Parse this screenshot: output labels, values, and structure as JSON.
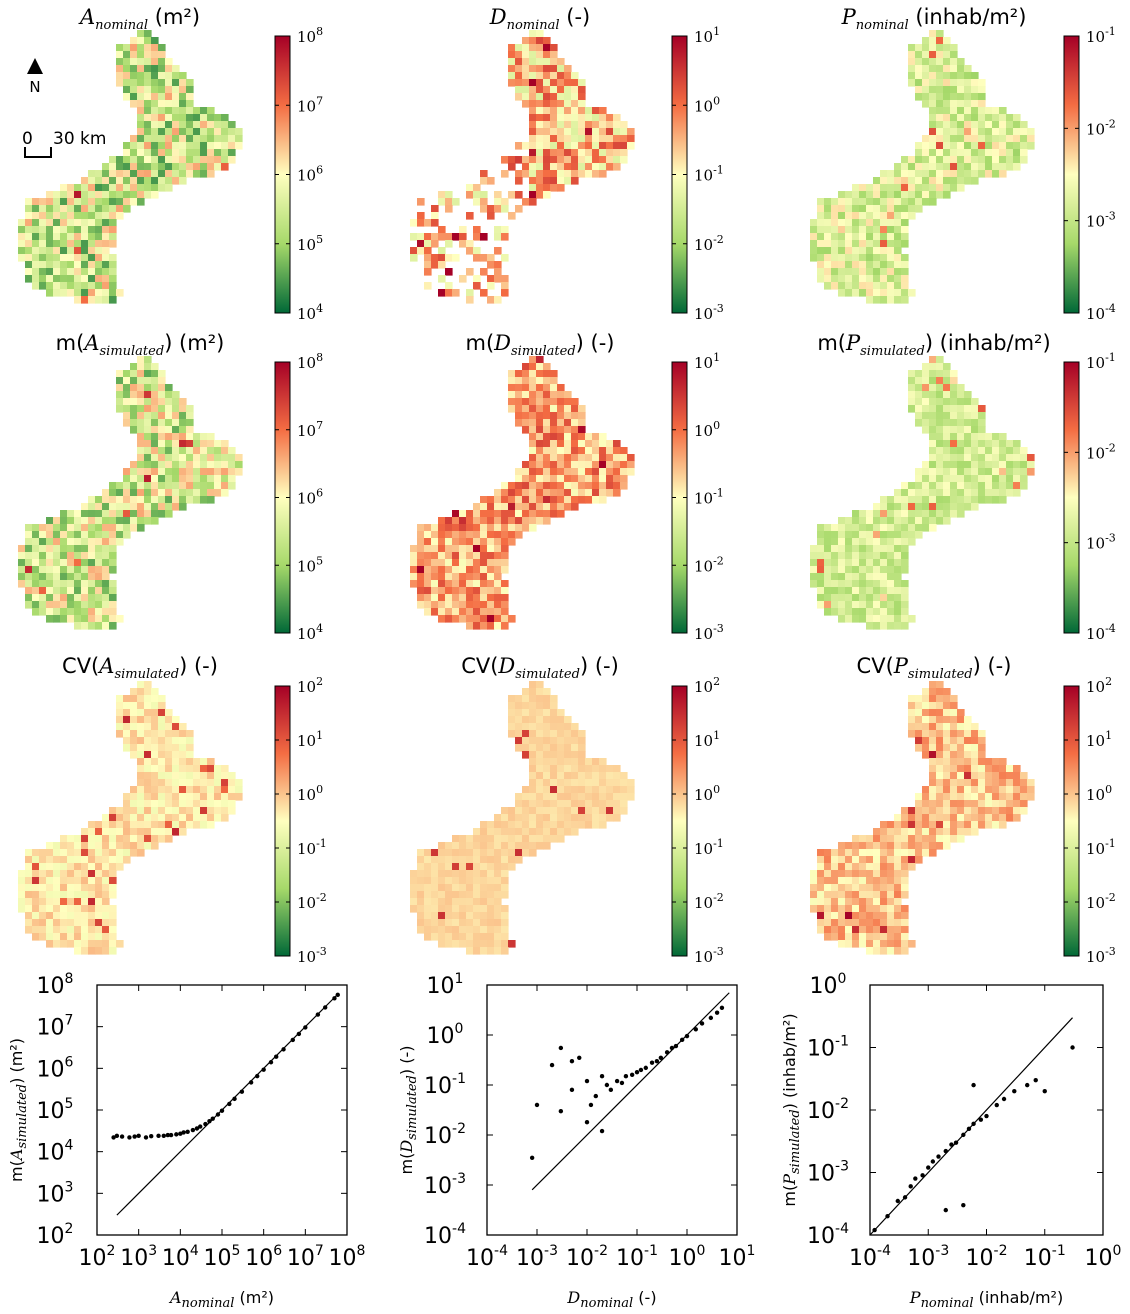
{
  "north_arrow": {
    "label": "N"
  },
  "scale_bar": {
    "zero": "0",
    "distance": "30 km"
  },
  "colormap": {
    "high": "#a50026",
    "mid_high": "#f46d43",
    "mid": "#ffffbf",
    "mid_low": "#a6d96a",
    "low": "#006837"
  },
  "maps": [
    {
      "key": "A_nominal",
      "title": {
        "pre": "",
        "sym": "A",
        "sub": "nominal",
        "post": " (m²)"
      },
      "colorbar": {
        "min_exp": 4,
        "max_exp": 8,
        "ticks": [
          "10^4",
          "10^5",
          "10^6",
          "10^7",
          "10^8"
        ]
      },
      "mean": 0.38,
      "spread": 0.28,
      "seed": 1,
      "mask": "full"
    },
    {
      "key": "D_nominal",
      "title": {
        "pre": "",
        "sym": "D",
        "sub": "nominal",
        "post": " (-)"
      },
      "colorbar": {
        "min_exp": -3,
        "max_exp": 1,
        "ticks": [
          "10^-3",
          "10^-2",
          "10^-1",
          "10^0",
          "10^1"
        ]
      },
      "mean": 0.62,
      "spread": 0.22,
      "seed": 2,
      "mask": "sparse"
    },
    {
      "key": "P_nominal",
      "title": {
        "pre": "",
        "sym": "P",
        "sub": "nominal",
        "post": " (inhab/m²)"
      },
      "colorbar": {
        "min_exp": -4,
        "max_exp": -1,
        "ticks": [
          "10^-4",
          "10^-3",
          "10^-2",
          "10^-1"
        ]
      },
      "mean": 0.4,
      "spread": 0.16,
      "seed": 3,
      "mask": "full"
    },
    {
      "key": "A_sim_mean",
      "title": {
        "pre": "m(",
        "sym": "A",
        "sub": "simulated",
        "post": ") (m²)"
      },
      "colorbar": {
        "min_exp": 4,
        "max_exp": 8,
        "ticks": [
          "10^4",
          "10^5",
          "10^6",
          "10^7",
          "10^8"
        ]
      },
      "mean": 0.4,
      "spread": 0.26,
      "seed": 4,
      "mask": "full"
    },
    {
      "key": "D_sim_mean",
      "title": {
        "pre": "m(",
        "sym": "D",
        "sub": "simulated",
        "post": ") (-)"
      },
      "colorbar": {
        "min_exp": -3,
        "max_exp": 1,
        "ticks": [
          "10^-3",
          "10^-2",
          "10^-1",
          "10^0",
          "10^1"
        ]
      },
      "mean": 0.66,
      "spread": 0.18,
      "seed": 5,
      "mask": "full"
    },
    {
      "key": "P_sim_mean",
      "title": {
        "pre": "m(",
        "sym": "P",
        "sub": "simulated",
        "post": ") (inhab/m²)"
      },
      "colorbar": {
        "min_exp": -4,
        "max_exp": -1,
        "ticks": [
          "10^-4",
          "10^-3",
          "10^-2",
          "10^-1"
        ]
      },
      "mean": 0.38,
      "spread": 0.12,
      "seed": 6,
      "mask": "full"
    },
    {
      "key": "A_sim_cv",
      "title": {
        "pre": "CV(",
        "sym": "A",
        "sub": "simulated",
        "post": ") (-)"
      },
      "colorbar": {
        "min_exp": -3,
        "max_exp": 2,
        "ticks": [
          "10^-3",
          "10^-2",
          "10^-1",
          "10^0",
          "10^1",
          "10^2"
        ]
      },
      "mean": 0.54,
      "spread": 0.08,
      "seed": 7,
      "mask": "full"
    },
    {
      "key": "D_sim_cv",
      "title": {
        "pre": "CV(",
        "sym": "D",
        "sub": "simulated",
        "post": ") (-)"
      },
      "colorbar": {
        "min_exp": -3,
        "max_exp": 2,
        "ticks": [
          "10^-3",
          "10^-2",
          "10^-1",
          "10^0",
          "10^1",
          "10^2"
        ]
      },
      "mean": 0.57,
      "spread": 0.03,
      "seed": 8,
      "mask": "full"
    },
    {
      "key": "P_sim_cv",
      "title": {
        "pre": "CV(",
        "sym": "P",
        "sub": "simulated",
        "post": ") (-)"
      },
      "colorbar": {
        "min_exp": -3,
        "max_exp": 2,
        "ticks": [
          "10^-3",
          "10^-2",
          "10^-1",
          "10^0",
          "10^1",
          "10^2"
        ]
      },
      "mean": 0.6,
      "spread": 0.12,
      "seed": 9,
      "mask": "full"
    }
  ],
  "chart_data": [
    {
      "type": "scatter",
      "title": "",
      "xlabel": {
        "sym": "A",
        "sub": "nominal",
        "post": " (m²)"
      },
      "ylabel": {
        "pre": "m(",
        "sym": "A",
        "sub": "simulated",
        "post": ") (m²)"
      },
      "x_scale": "log",
      "y_scale": "log",
      "xlim": [
        100,
        100000000
      ],
      "ylim": [
        100,
        100000000
      ],
      "x_ticks": [
        "10^2",
        "10^3",
        "10^4",
        "10^5",
        "10^6",
        "10^7",
        "10^8"
      ],
      "y_ticks": [
        "10^2",
        "10^3",
        "10^4",
        "10^5",
        "10^6",
        "10^7",
        "10^8"
      ],
      "reference_line": {
        "x": [
          300,
          60000000
        ],
        "y": [
          300,
          60000000
        ]
      },
      "points_x": [
        250,
        300,
        400,
        600,
        800,
        1000,
        1500,
        2000,
        3000,
        4000,
        5000,
        6000,
        8000,
        10000,
        12000,
        15000,
        20000,
        25000,
        30000,
        40000,
        50000,
        60000,
        80000,
        100000,
        150000,
        200000,
        300000,
        500000,
        700000,
        1000000,
        1500000,
        2000000,
        3000000,
        5000000,
        7000000,
        10000000,
        20000000,
        30000000,
        50000000,
        60000000
      ],
      "points_y": [
        22000,
        24000,
        23000,
        22000,
        23000,
        24000,
        22000,
        23500,
        24000,
        24000,
        25000,
        25000,
        26000,
        27000,
        29000,
        30000,
        33000,
        36000,
        40000,
        46000,
        54000,
        62000,
        78000,
        96000,
        140000,
        185000,
        275000,
        460000,
        650000,
        930000,
        1400000,
        1900000,
        2850000,
        4800000,
        6700000,
        9600000,
        19500000,
        29000000,
        48000000,
        58000000
      ],
      "grid": false
    },
    {
      "type": "scatter",
      "title": "",
      "xlabel": {
        "sym": "D",
        "sub": "nominal",
        "post": " (-)"
      },
      "ylabel": {
        "pre": "m(",
        "sym": "D",
        "sub": "simulated",
        "post": ") (-)"
      },
      "x_scale": "log",
      "y_scale": "log",
      "xlim": [
        0.0001,
        10
      ],
      "ylim": [
        0.0001,
        10
      ],
      "x_ticks": [
        "10^-4",
        "10^-3",
        "10^-2",
        "10^-1",
        "10^0",
        "10^1"
      ],
      "y_ticks": [
        "10^-4",
        "10^-3",
        "10^-2",
        "10^-1",
        "10^0",
        "10^1"
      ],
      "reference_line": {
        "x": [
          0.0008,
          7
        ],
        "y": [
          0.0008,
          7
        ]
      },
      "points_x": [
        0.0008,
        0.001,
        0.002,
        0.003,
        0.005,
        0.007,
        0.01,
        0.012,
        0.015,
        0.02,
        0.025,
        0.03,
        0.04,
        0.05,
        0.06,
        0.08,
        0.1,
        0.12,
        0.15,
        0.2,
        0.25,
        0.3,
        0.4,
        0.5,
        0.6,
        0.8,
        1,
        1.5,
        2,
        3,
        4,
        5,
        0.003,
        0.005,
        0.01,
        0.02
      ],
      "points_y": [
        0.0035,
        0.04,
        0.25,
        0.03,
        0.08,
        0.35,
        0.12,
        0.04,
        0.06,
        0.15,
        0.1,
        0.08,
        0.12,
        0.11,
        0.15,
        0.16,
        0.18,
        0.2,
        0.22,
        0.28,
        0.3,
        0.35,
        0.45,
        0.55,
        0.6,
        0.8,
        0.95,
        1.3,
        1.7,
        2.2,
        2.8,
        3.5,
        0.55,
        0.3,
        0.018,
        0.012
      ],
      "grid": false
    },
    {
      "type": "scatter",
      "title": "",
      "xlabel": {
        "sym": "P",
        "sub": "nominal",
        "post": " (inhab/m²)"
      },
      "ylabel": {
        "pre": "m(",
        "sym": "P",
        "sub": "simulated",
        "post": ") (inhab/m²)"
      },
      "x_scale": "log",
      "y_scale": "log",
      "xlim": [
        0.0001,
        1
      ],
      "ylim": [
        0.0001,
        1
      ],
      "x_ticks": [
        "10^-4",
        "10^-3",
        "10^-2",
        "10^-1",
        "10^0"
      ],
      "y_ticks": [
        "10^-4",
        "10^-3",
        "10^-2",
        "10^-1",
        "10^0"
      ],
      "reference_line": {
        "x": [
          0.0001,
          0.3
        ],
        "y": [
          0.0001,
          0.3
        ]
      },
      "points_x": [
        0.00012,
        0.0002,
        0.0003,
        0.0004,
        0.0005,
        0.0006,
        0.0008,
        0.001,
        0.0012,
        0.0015,
        0.002,
        0.0025,
        0.003,
        0.004,
        0.005,
        0.006,
        0.008,
        0.01,
        0.015,
        0.02,
        0.03,
        0.05,
        0.07,
        0.1,
        0.3,
        0.002,
        0.004,
        0.006
      ],
      "points_y": [
        0.00012,
        0.0002,
        0.00035,
        0.0004,
        0.0006,
        0.0008,
        0.0009,
        0.0012,
        0.0015,
        0.0018,
        0.0022,
        0.0028,
        0.003,
        0.004,
        0.005,
        0.006,
        0.007,
        0.008,
        0.012,
        0.015,
        0.02,
        0.025,
        0.03,
        0.02,
        0.1,
        0.00025,
        0.0003,
        0.025
      ],
      "grid": false
    }
  ]
}
